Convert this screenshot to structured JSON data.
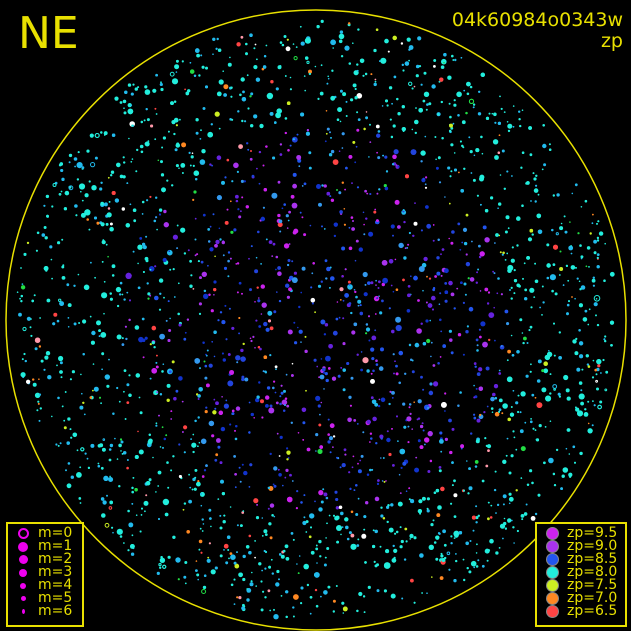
{
  "direction_label": "NE",
  "header": {
    "image_id": "04k60984o0343w",
    "mode": "zp"
  },
  "magnitude_legend": [
    {
      "label": "m=0",
      "symbol": "open-circle"
    },
    {
      "label": "m=1",
      "symbol": "dot"
    },
    {
      "label": "m=2",
      "symbol": "dot"
    },
    {
      "label": "m=3",
      "symbol": "dot"
    },
    {
      "label": "m=4",
      "symbol": "dot"
    },
    {
      "label": "m=5",
      "symbol": "dot"
    },
    {
      "label": "m=6",
      "symbol": "dot"
    }
  ],
  "zp_legend": [
    {
      "label": "zp=9.5",
      "color": "#cc22ee"
    },
    {
      "label": "zp=9.0",
      "color": "#aa33ee"
    },
    {
      "label": "zp=8.5",
      "color": "#2255ee"
    },
    {
      "label": "zp=8.0",
      "color": "#22eedd"
    },
    {
      "label": "zp=7.5",
      "color": "#ccee22"
    },
    {
      "label": "zp=7.0",
      "color": "#ff8822"
    },
    {
      "label": "zp=6.5",
      "color": "#ff4444"
    }
  ],
  "colors": {
    "frame": "#e8e000",
    "legend_symbol": "#ee00ee",
    "background": "#000000"
  }
}
